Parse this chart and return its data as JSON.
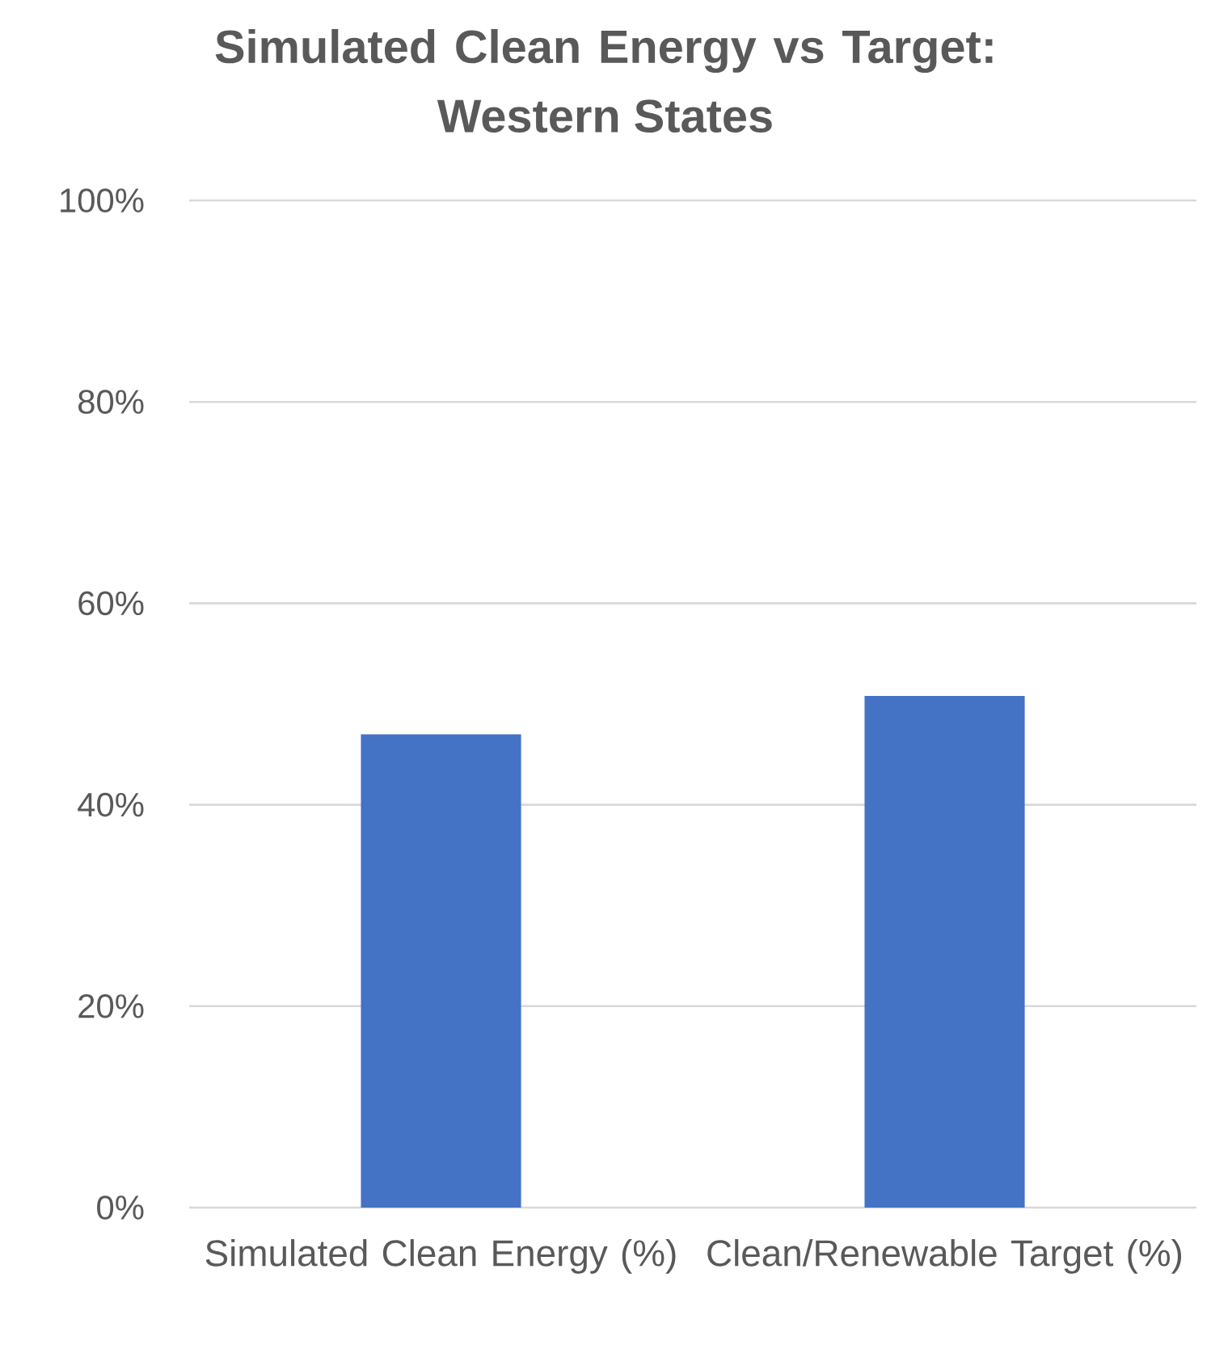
{
  "chart_data": {
    "type": "bar",
    "title": "Simulated Clean Energy vs Target: Western States",
    "categories": [
      "Simulated Clean Energy (%)",
      "Clean/Renewable Target (%)"
    ],
    "values": [
      47.0,
      50.8
    ],
    "color": "#4472c4",
    "ylim": [
      0,
      100
    ],
    "yticks": [
      {
        "value": 0,
        "label": "0%"
      },
      {
        "value": 20,
        "label": "20%"
      },
      {
        "value": 40,
        "label": "40%"
      },
      {
        "value": 60,
        "label": "60%"
      },
      {
        "value": 80,
        "label": "80%"
      },
      {
        "value": 100,
        "label": "100%"
      }
    ],
    "grid": "y",
    "legend": false
  }
}
